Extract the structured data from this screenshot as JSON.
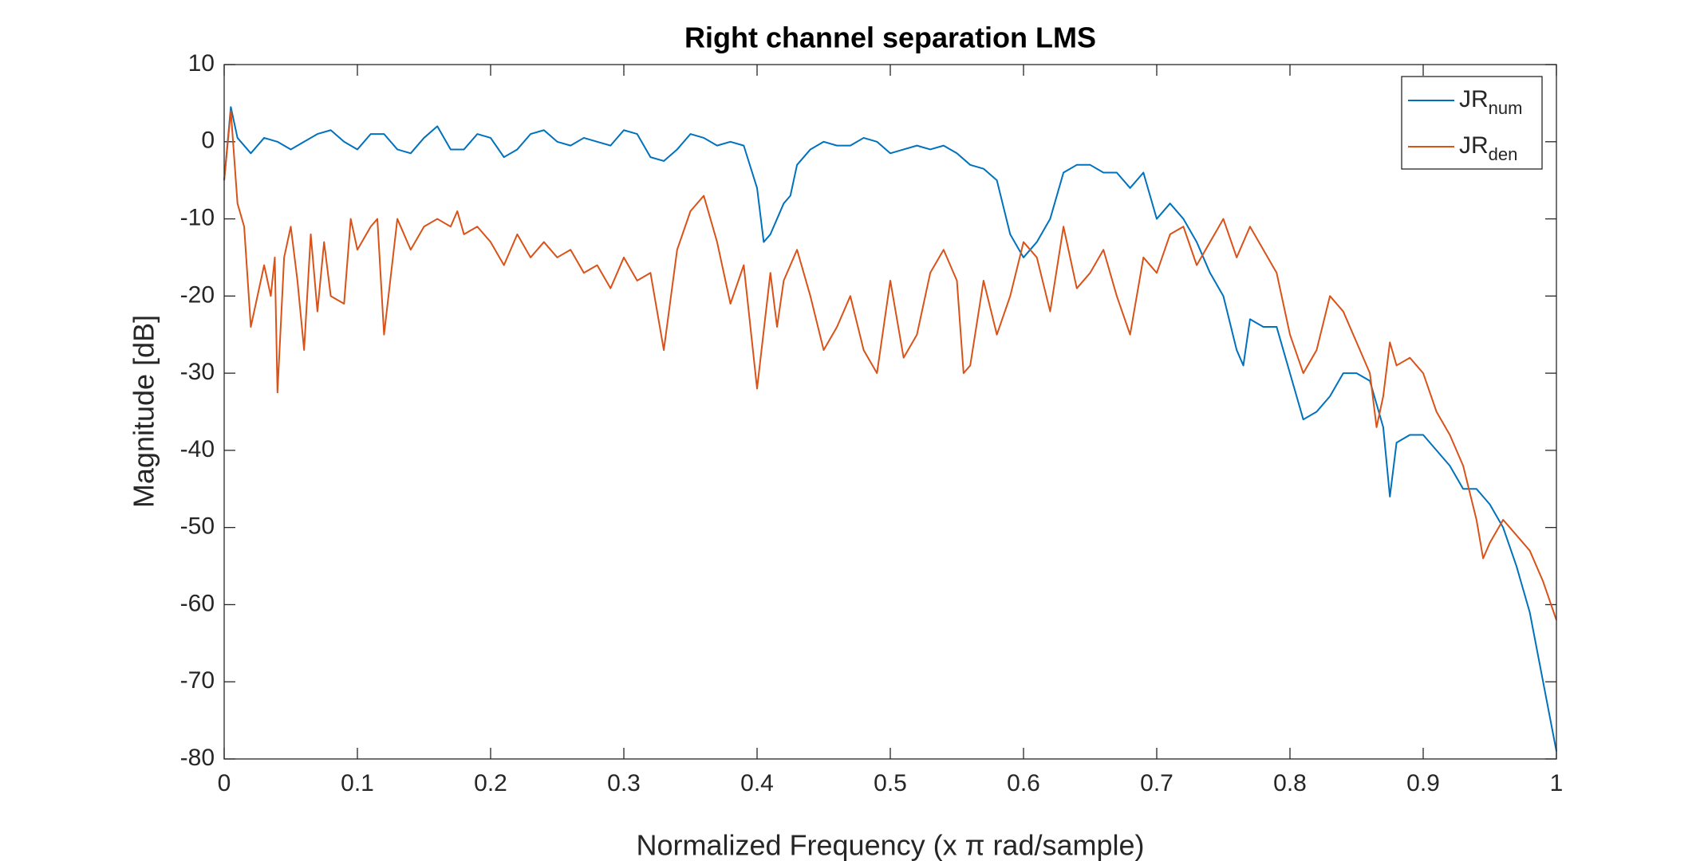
{
  "chart_data": {
    "type": "line",
    "title": "Right channel separation LMS",
    "x_label": "Normalized Frequency (x π rad/sample)",
    "y_label": "Magnitude [dB]",
    "xlim": [
      0,
      1
    ],
    "ylim": [
      -80,
      10
    ],
    "xticks": [
      0,
      0.1,
      0.2,
      0.3,
      0.4,
      0.5,
      0.6,
      0.7,
      0.8,
      0.9,
      1
    ],
    "yticks": [
      -80,
      -70,
      -60,
      -50,
      -40,
      -30,
      -20,
      -10,
      0,
      10
    ],
    "legend": "top-right",
    "series": [
      {
        "name": "JR",
        "subscript": "num",
        "color": "#0072bd",
        "x": [
          0,
          0.005,
          0.01,
          0.02,
          0.03,
          0.04,
          0.05,
          0.06,
          0.07,
          0.08,
          0.09,
          0.1,
          0.11,
          0.12,
          0.13,
          0.14,
          0.15,
          0.16,
          0.17,
          0.18,
          0.19,
          0.2,
          0.21,
          0.22,
          0.23,
          0.24,
          0.25,
          0.26,
          0.27,
          0.28,
          0.29,
          0.3,
          0.31,
          0.32,
          0.33,
          0.34,
          0.35,
          0.36,
          0.37,
          0.38,
          0.39,
          0.4,
          0.405,
          0.41,
          0.42,
          0.425,
          0.43,
          0.44,
          0.45,
          0.46,
          0.47,
          0.48,
          0.49,
          0.5,
          0.51,
          0.52,
          0.53,
          0.54,
          0.55,
          0.56,
          0.57,
          0.58,
          0.59,
          0.6,
          0.61,
          0.62,
          0.63,
          0.64,
          0.65,
          0.66,
          0.67,
          0.68,
          0.69,
          0.7,
          0.71,
          0.72,
          0.73,
          0.74,
          0.75,
          0.76,
          0.765,
          0.77,
          0.78,
          0.79,
          0.8,
          0.81,
          0.82,
          0.83,
          0.84,
          0.85,
          0.86,
          0.87,
          0.875,
          0.88,
          0.89,
          0.9,
          0.91,
          0.92,
          0.93,
          0.94,
          0.95,
          0.96,
          0.97,
          0.98,
          0.99,
          1
        ],
        "values": [
          -5,
          4.5,
          0.5,
          -1.5,
          0.5,
          0,
          -1,
          0,
          1,
          1.5,
          0,
          -1,
          1,
          1,
          -1,
          -1.5,
          0.5,
          2,
          -1,
          -1,
          1,
          0.5,
          -2,
          -1,
          1,
          1.5,
          0,
          -0.5,
          0.5,
          0,
          -0.5,
          1.5,
          1,
          -2,
          -2.5,
          -1,
          1,
          0.5,
          -0.5,
          0,
          -0.5,
          -6,
          -13,
          -12,
          -8,
          -7,
          -3,
          -1,
          0,
          -0.5,
          -0.5,
          0.5,
          0,
          -1.5,
          -1,
          -0.5,
          -1,
          -0.5,
          -1.5,
          -3,
          -3.5,
          -5,
          -12,
          -15,
          -13,
          -10,
          -4,
          -3,
          -3,
          -4,
          -4,
          -6,
          -4,
          -10,
          -8,
          -10,
          -13,
          -17,
          -20,
          -27,
          -29,
          -23,
          -24,
          -24,
          -30,
          -36,
          -35,
          -33,
          -30,
          -30,
          -31,
          -37,
          -46,
          -39,
          -38,
          -38,
          -40,
          -42,
          -45,
          -45,
          -47,
          -50,
          -55,
          -61,
          -70,
          -79
        ]
      },
      {
        "name": "JR",
        "subscript": "den",
        "color": "#d95319",
        "x": [
          0,
          0.005,
          0.01,
          0.015,
          0.02,
          0.03,
          0.035,
          0.038,
          0.04,
          0.045,
          0.05,
          0.055,
          0.06,
          0.065,
          0.07,
          0.075,
          0.08,
          0.09,
          0.095,
          0.1,
          0.11,
          0.115,
          0.12,
          0.13,
          0.14,
          0.15,
          0.16,
          0.17,
          0.175,
          0.18,
          0.19,
          0.2,
          0.21,
          0.22,
          0.23,
          0.24,
          0.25,
          0.26,
          0.27,
          0.28,
          0.29,
          0.3,
          0.31,
          0.32,
          0.33,
          0.34,
          0.35,
          0.36,
          0.37,
          0.38,
          0.39,
          0.4,
          0.41,
          0.415,
          0.42,
          0.43,
          0.44,
          0.45,
          0.46,
          0.47,
          0.48,
          0.49,
          0.5,
          0.51,
          0.52,
          0.53,
          0.54,
          0.55,
          0.555,
          0.56,
          0.57,
          0.58,
          0.59,
          0.6,
          0.61,
          0.62,
          0.63,
          0.64,
          0.65,
          0.66,
          0.67,
          0.68,
          0.69,
          0.7,
          0.71,
          0.72,
          0.73,
          0.74,
          0.75,
          0.76,
          0.77,
          0.78,
          0.79,
          0.8,
          0.81,
          0.82,
          0.83,
          0.84,
          0.85,
          0.86,
          0.865,
          0.87,
          0.875,
          0.88,
          0.89,
          0.9,
          0.91,
          0.92,
          0.93,
          0.94,
          0.945,
          0.95,
          0.96,
          0.97,
          0.98,
          0.99,
          1
        ],
        "values": [
          -5,
          4,
          -8,
          -11,
          -24,
          -16,
          -20,
          -15,
          -32.5,
          -15,
          -11,
          -18,
          -27,
          -12,
          -22,
          -13,
          -20,
          -21,
          -10,
          -14,
          -11,
          -10,
          -25,
          -10,
          -14,
          -11,
          -10,
          -11,
          -9,
          -12,
          -11,
          -13,
          -16,
          -12,
          -15,
          -13,
          -15,
          -14,
          -17,
          -16,
          -19,
          -15,
          -18,
          -17,
          -27,
          -14,
          -9,
          -7,
          -13,
          -21,
          -16,
          -32,
          -17,
          -24,
          -18,
          -14,
          -20,
          -27,
          -24,
          -20,
          -27,
          -30,
          -18,
          -28,
          -25,
          -17,
          -14,
          -18,
          -30,
          -29,
          -18,
          -25,
          -20,
          -13,
          -15,
          -22,
          -11,
          -19,
          -17,
          -14,
          -20,
          -25,
          -15,
          -17,
          -12,
          -11,
          -16,
          -13,
          -10,
          -15,
          -11,
          -14,
          -17,
          -25,
          -30,
          -27,
          -20,
          -22,
          -26,
          -30,
          -37,
          -33,
          -26,
          -29,
          -28,
          -30,
          -35,
          -38,
          -42,
          -49,
          -54,
          -52,
          -49,
          -51,
          -53,
          -57,
          -62
        ]
      }
    ]
  }
}
